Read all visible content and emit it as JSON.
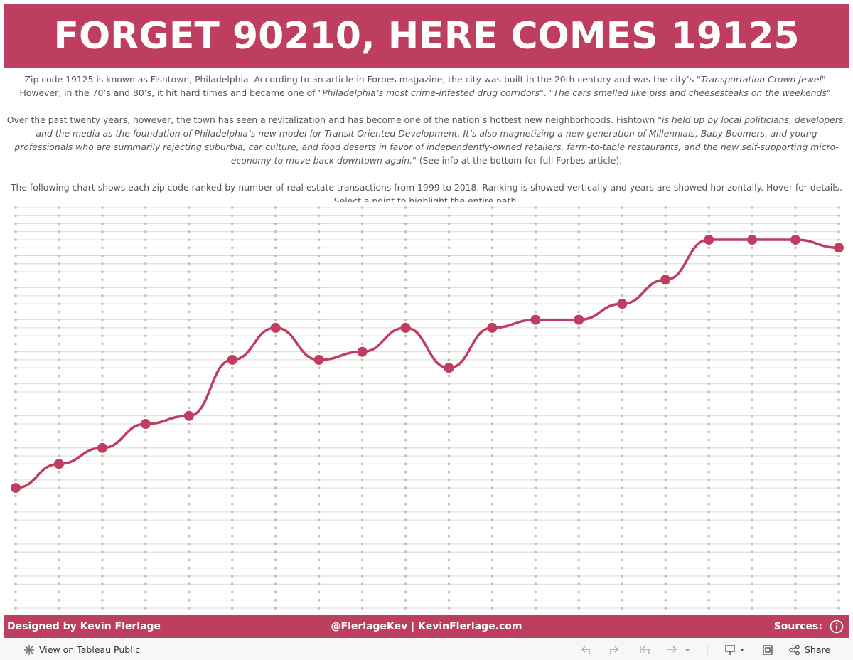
{
  "header": {
    "title": "FORGET 90210, HERE COMES 19125"
  },
  "intro": {
    "paragraphs": [
      [
        {
          "text": "Zip code 19125 is known as Fishtown, Philadelphia.  According to an article in Forbes magazine, the city was built in the 20th century and was the city’s \"",
          "italic": false
        },
        {
          "text": "Transportation Crown Jewel",
          "italic": true
        },
        {
          "text": "\".  However, in the 70’s and 80’s, it hit hard times and became one of \"",
          "italic": false
        },
        {
          "text": "Philadelphia’s most crime-infested drug corridors",
          "italic": true
        },
        {
          "text": "\".  \"",
          "italic": false
        },
        {
          "text": "The cars smelled like piss and cheesesteaks on the weekends",
          "italic": true
        },
        {
          "text": "\".",
          "italic": false
        }
      ],
      [
        {
          "text": "Over the past twenty years, however, the town has seen a revitalization and has become one of the nation’s hottest new neighborhoods.  Fishtown \"",
          "italic": false
        },
        {
          "text": "is held up by local politicians, developers, and the media as the foundation of Philadelphia’s new model for Transit Oriented Development. It’s also magnetizing a new generation of Millennials, Baby Boomers, and young professionals who are summarily rejecting suburbia, car culture, and food deserts in favor of independently-owned retailers, farm-to-table restaurants, and the new self-supporting micro-economy to move back downtown again.",
          "italic": true
        },
        {
          "text": "\"  (See info at the bottom for full Forbes article).",
          "italic": false
        }
      ],
      [
        {
          "text": "The following chart shows each zip code ranked by number of real estate transactions from 1999 to 2018.  Ranking is showed vertically and years are showed horizontally.  Hover for details.",
          "italic": false
        },
        {
          "text": " Select a point to highlight the entire path.",
          "italic": false
        }
      ]
    ]
  },
  "chart_data": {
    "type": "bump",
    "color": "#be3e5f",
    "values": [
      36,
      33,
      31,
      28,
      27,
      20,
      16,
      20,
      19,
      16,
      21,
      16,
      15,
      15,
      13,
      10,
      5,
      5,
      5,
      6
    ],
    "ylim": [
      1,
      51
    ],
    "y_reversed": true
  },
  "footer": {
    "left": "Designed by Kevin Flerlage",
    "center": "@FlerlageKev | KevinFlerlage.com",
    "right": "Sources:"
  },
  "toolbar": {
    "view": "View on Tableau Public",
    "share": "Share"
  }
}
